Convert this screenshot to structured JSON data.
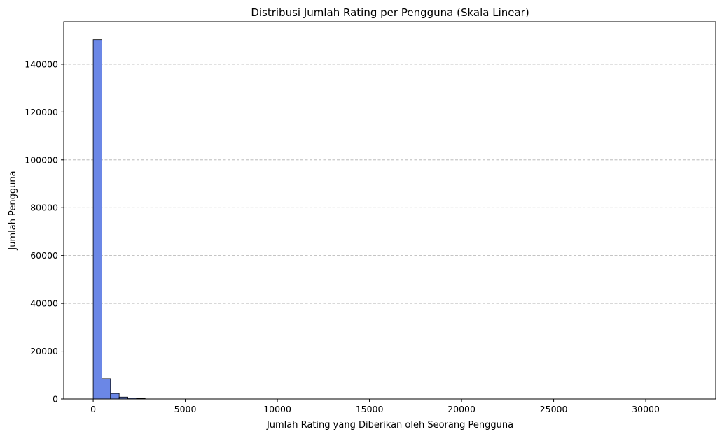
{
  "chart_data": {
    "type": "bar",
    "title": "Distribusi Jumlah Rating per Pengguna (Skala Linear)",
    "xlabel": "Jumlah Rating yang Diberikan oleh Seorang Pengguna",
    "ylabel": "Jumlah Pengguna",
    "xlim": [
      -1600,
      33800
    ],
    "ylim": [
      0,
      157800
    ],
    "x_ticks": [
      0,
      5000,
      10000,
      15000,
      20000,
      25000,
      30000
    ],
    "y_ticks": [
      0,
      20000,
      40000,
      60000,
      80000,
      100000,
      120000,
      140000
    ],
    "grid": "y-dashed",
    "bar_color": "#6b87e6",
    "bar_edge_color": "#000000",
    "bin_width": 470,
    "bins": [
      {
        "start": 0,
        "count": 150300
      },
      {
        "start": 470,
        "count": 8500
      },
      {
        "start": 940,
        "count": 2300
      },
      {
        "start": 1410,
        "count": 800
      },
      {
        "start": 1880,
        "count": 350
      },
      {
        "start": 2350,
        "count": 200
      }
    ]
  }
}
